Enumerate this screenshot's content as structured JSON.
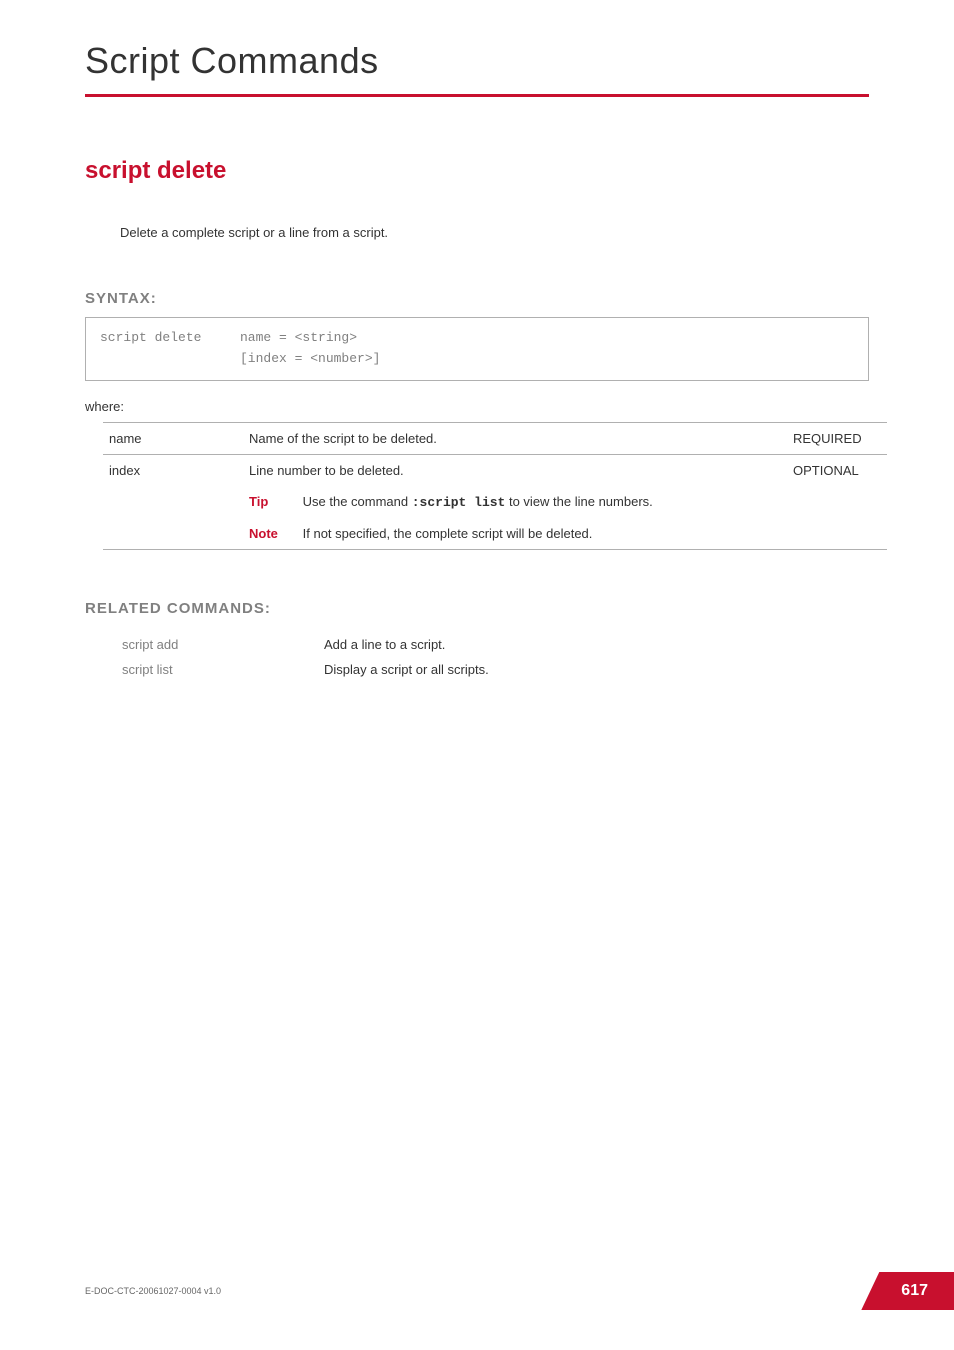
{
  "chapter_title": "Script Commands",
  "section_title": "script delete",
  "description": "Delete a complete script or a line from a script.",
  "syntax": {
    "heading": "SYNTAX:",
    "command": "script delete",
    "args_line1": "name = <string>",
    "args_line2": "[index = <number>]",
    "where_label": "where:"
  },
  "params": [
    {
      "name": "name",
      "desc": "Name of the script to be deleted.",
      "req": "REQUIRED"
    },
    {
      "name": "index",
      "desc": "Line number to be deleted.",
      "req": "OPTIONAL",
      "tip_label": "Tip",
      "tip_text_pre": "Use the command ",
      "tip_code": ":script list",
      "tip_text_post": " to view the line numbers.",
      "note_label": "Note",
      "note_text": "If not specified, the complete script will be deleted."
    }
  ],
  "related": {
    "heading": "RELATED COMMANDS:",
    "items": [
      {
        "cmd": "script add",
        "desc": "Add a line to a script."
      },
      {
        "cmd": "script list",
        "desc": "Display a script or all scripts."
      }
    ]
  },
  "footer": {
    "doc_id": "E-DOC-CTC-20061027-0004 v1.0",
    "page_number": "617"
  },
  "colors": {
    "accent": "#c8102e",
    "gray_text": "#808080",
    "border": "#b0b0b0"
  }
}
